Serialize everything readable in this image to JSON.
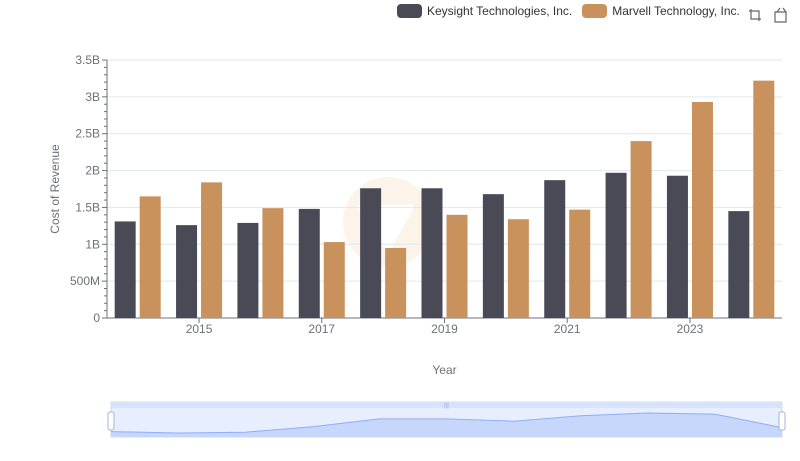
{
  "legend": {
    "items": [
      {
        "label": "Keysight Technologies, Inc.",
        "color": "#4a4a57"
      },
      {
        "label": "Marvell Technology, Inc.",
        "color": "#c9915c"
      }
    ]
  },
  "toolbox": {
    "icons": [
      "zoom-icon",
      "zoom-reset-icon"
    ]
  },
  "chart_data": {
    "type": "bar",
    "xlabel": "Year",
    "ylabel": "Cost of Revenue",
    "categories": [
      "2014",
      "2015",
      "2016",
      "2017",
      "2018",
      "2019",
      "2020",
      "2021",
      "2022",
      "2023",
      "2024"
    ],
    "x_tick_labels": [
      "2015",
      "2017",
      "2019",
      "2021",
      "2023"
    ],
    "series": [
      {
        "name": "Keysight Technologies, Inc.",
        "color": "#4a4a57",
        "values": [
          1.31,
          1.26,
          1.29,
          1.48,
          1.76,
          1.76,
          1.68,
          1.87,
          1.97,
          1.93,
          1.45
        ]
      },
      {
        "name": "Marvell Technology, Inc.",
        "color": "#c9915c",
        "values": [
          1.65,
          1.84,
          1.49,
          1.03,
          0.95,
          1.4,
          1.34,
          1.47,
          2.4,
          2.93,
          3.22
        ]
      }
    ],
    "ylim": [
      0,
      3.5
    ],
    "y_ticks": [
      {
        "value": 0,
        "label": "0"
      },
      {
        "value": 0.5,
        "label": "500M"
      },
      {
        "value": 1.0,
        "label": "1B"
      },
      {
        "value": 1.5,
        "label": "1.5B"
      },
      {
        "value": 2.0,
        "label": "2B"
      },
      {
        "value": 2.5,
        "label": "2.5B"
      },
      {
        "value": 3.0,
        "label": "3B"
      },
      {
        "value": 3.5,
        "label": "3.5B"
      }
    ],
    "grid": true,
    "legend_position": "top-right",
    "datazoom": true
  }
}
